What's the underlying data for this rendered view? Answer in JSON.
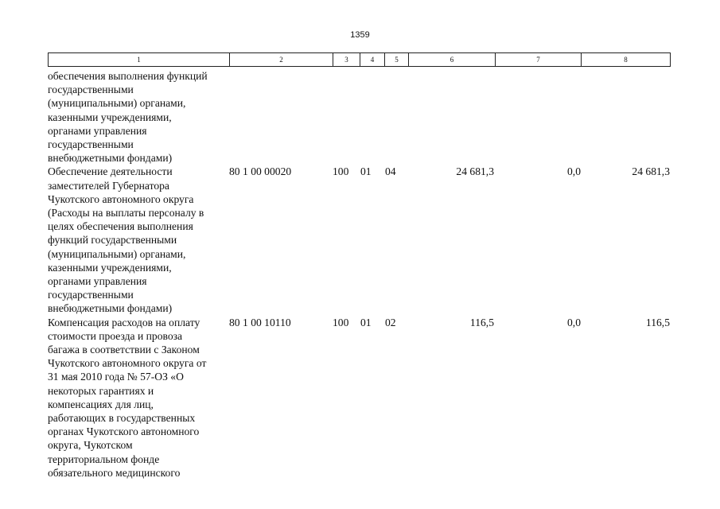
{
  "page_number": "1359",
  "header_columns": [
    "1",
    "2",
    "3",
    "4",
    "5",
    "6",
    "7",
    "8"
  ],
  "rows": [
    {
      "lines": [
        "обеспечения выполнения функций",
        "государственными",
        "(муниципальными) органами,",
        "казенными учреждениями,",
        "органами управления",
        "государственными",
        "внебюджетными фондами)"
      ],
      "code": "",
      "c3": "",
      "c4": "",
      "c5": "",
      "v6": "",
      "v7": "",
      "v8": ""
    },
    {
      "lines": [
        "Обеспечение деятельности",
        "заместителей Губернатора",
        "Чукотского автономного округа",
        "(Расходы на выплаты персоналу в",
        "целях обеспечения выполнения",
        "функций государственными",
        "(муниципальными) органами,",
        "казенными учреждениями,",
        "органами управления",
        "государственными",
        "внебюджетными фондами)"
      ],
      "code": "80 1 00 00020",
      "c3": "100",
      "c4": "01",
      "c5": "04",
      "v6": "24 681,3",
      "v7": "0,0",
      "v8": "24 681,3"
    },
    {
      "lines": [
        "Компенсация расходов на оплату",
        "стоимости проезда и провоза",
        "багажа в соответствии с Законом",
        "Чукотского автономного округа от",
        "31 мая 2010 года № 57-ОЗ «О",
        "некоторых гарантиях и",
        "компенсациях для лиц,",
        "работающих в государственных",
        "органах Чукотского автономного",
        "округа, Чукотском",
        "территориальном фонде",
        "обязательного медицинского"
      ],
      "code": "80 1 00 10110",
      "c3": "100",
      "c4": "01",
      "c5": "02",
      "v6": "116,5",
      "v7": "0,0",
      "v8": "116,5"
    }
  ]
}
